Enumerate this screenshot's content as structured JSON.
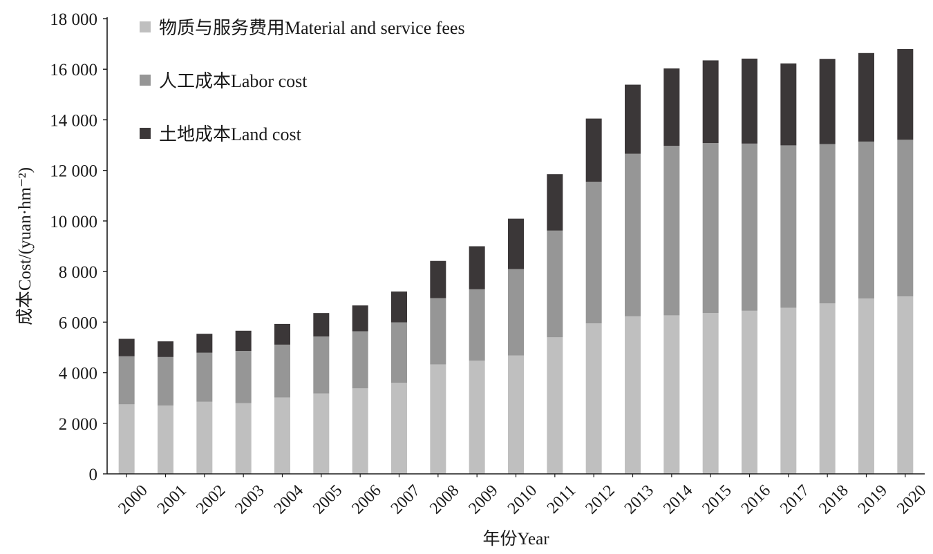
{
  "chart_data": {
    "type": "bar",
    "stacked": true,
    "categories": [
      "2000",
      "2001",
      "2002",
      "2003",
      "2004",
      "2005",
      "2006",
      "2007",
      "2008",
      "2009",
      "2010",
      "2011",
      "2012",
      "2013",
      "2014",
      "2015",
      "2016",
      "2017",
      "2018",
      "2019",
      "2020"
    ],
    "series": [
      {
        "name": "物质与服务费用Material and service fees",
        "color": "#bfbfbf",
        "values": [
          2750,
          2700,
          2850,
          2800,
          3020,
          3180,
          3380,
          3600,
          4330,
          4480,
          4680,
          5400,
          5950,
          6230,
          6270,
          6360,
          6450,
          6570,
          6740,
          6930,
          7020
        ]
      },
      {
        "name": "人工成本Labor cost",
        "color": "#969696",
        "values": [
          1900,
          1920,
          1940,
          2060,
          2090,
          2250,
          2260,
          2390,
          2620,
          2820,
          3420,
          4220,
          5600,
          6430,
          6700,
          6720,
          6610,
          6420,
          6300,
          6210,
          6190
        ]
      },
      {
        "name": "土地成本Land cost",
        "color": "#3b3738",
        "values": [
          690,
          620,
          750,
          800,
          820,
          930,
          1020,
          1220,
          1470,
          1700,
          1990,
          2230,
          2500,
          2730,
          3060,
          3270,
          3360,
          3240,
          3370,
          3500,
          3590
        ]
      }
    ],
    "ylim": [
      0,
      18000
    ],
    "yticks": [
      0,
      2000,
      4000,
      6000,
      8000,
      10000,
      12000,
      14000,
      16000,
      18000
    ],
    "ytick_labels": [
      "0",
      "2 000",
      "4 000",
      "6 000",
      "8 000",
      "10 000",
      "12 000",
      "14 000",
      "16 000",
      "18 000"
    ],
    "xlabel": "年份Year",
    "ylabel": "成本Cost/(yuan·hm⁻²)",
    "legend_position": "top-left"
  }
}
